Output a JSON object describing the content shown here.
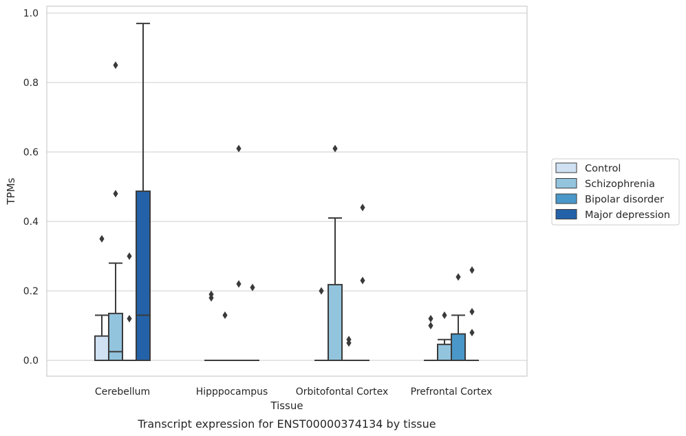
{
  "chart_data": {
    "type": "box",
    "xlabel": "Tissue",
    "ylabel": "TPMs",
    "caption": "Transcript expression for ENST00000374134 by tissue",
    "ylim": [
      -0.047,
      1.02
    ],
    "yticks": [
      0.0,
      0.2,
      0.4,
      0.6,
      0.8,
      1.0
    ],
    "ytick_labels": [
      "0.0",
      "0.2",
      "0.4",
      "0.6",
      "0.8",
      "1.0"
    ],
    "grid": "horizontal",
    "legend_position": "right",
    "categories": [
      "Cerebellum",
      "Hipppocampus",
      "Orbitofontal Cortex",
      "Prefrontal Cortex"
    ],
    "series": [
      {
        "name": "Control",
        "color": "#cfe1f2",
        "boxes": [
          {
            "q1": 0.0,
            "median": 0.0,
            "q3": 0.07,
            "whisker_low": 0.0,
            "whisker_high": 0.13,
            "outliers": [
              0.35
            ]
          },
          {
            "q1": 0.0,
            "median": 0.0,
            "q3": 0.0,
            "whisker_low": 0.0,
            "whisker_high": 0.0,
            "outliers": [
              0.19,
              0.18
            ]
          },
          {
            "q1": 0.0,
            "median": 0.0,
            "q3": 0.0,
            "whisker_low": 0.0,
            "whisker_high": 0.0,
            "outliers": [
              0.2
            ]
          },
          {
            "q1": 0.0,
            "median": 0.0,
            "q3": 0.0,
            "whisker_low": 0.0,
            "whisker_high": 0.0,
            "outliers": [
              0.12,
              0.1
            ]
          }
        ]
      },
      {
        "name": "Schizophrenia",
        "color": "#93c4de",
        "boxes": [
          {
            "q1": 0.0,
            "median": 0.025,
            "q3": 0.135,
            "whisker_low": 0.0,
            "whisker_high": 0.28,
            "outliers": [
              0.85,
              0.48
            ]
          },
          {
            "q1": 0.0,
            "median": 0.0,
            "q3": 0.0,
            "whisker_low": 0.0,
            "whisker_high": 0.0,
            "outliers": [
              0.13
            ]
          },
          {
            "q1": 0.0,
            "median": 0.0,
            "q3": 0.218,
            "whisker_low": 0.0,
            "whisker_high": 0.41,
            "outliers": [
              0.61
            ]
          },
          {
            "q1": 0.0,
            "median": 0.0,
            "q3": 0.046,
            "whisker_low": 0.0,
            "whisker_high": 0.06,
            "outliers": [
              0.13
            ]
          }
        ]
      },
      {
        "name": "Bipolar disorder",
        "color": "#4a98c9",
        "boxes": [
          {
            "q1": 0.0,
            "median": 0.0,
            "q3": 0.0,
            "whisker_low": 0.0,
            "whisker_high": 0.0,
            "outliers": [
              0.3,
              0.12
            ]
          },
          {
            "q1": 0.0,
            "median": 0.0,
            "q3": 0.0,
            "whisker_low": 0.0,
            "whisker_high": 0.0,
            "outliers": [
              0.61,
              0.22
            ]
          },
          {
            "q1": 0.0,
            "median": 0.0,
            "q3": 0.0,
            "whisker_low": 0.0,
            "whisker_high": 0.0,
            "outliers": [
              0.06,
              0.05
            ]
          },
          {
            "q1": 0.0,
            "median": 0.0,
            "q3": 0.076,
            "whisker_low": 0.0,
            "whisker_high": 0.13,
            "outliers": [
              0.24
            ]
          }
        ]
      },
      {
        "name": "Major depression",
        "color": "#2362a8",
        "boxes": [
          {
            "q1": 0.0,
            "median": 0.13,
            "q3": 0.487,
            "whisker_low": 0.0,
            "whisker_high": 0.97,
            "outliers": []
          },
          {
            "q1": 0.0,
            "median": 0.0,
            "q3": 0.0,
            "whisker_low": 0.0,
            "whisker_high": 0.0,
            "outliers": [
              0.21
            ]
          },
          {
            "q1": 0.0,
            "median": 0.0,
            "q3": 0.0,
            "whisker_low": 0.0,
            "whisker_high": 0.0,
            "outliers": [
              0.44,
              0.23
            ]
          },
          {
            "q1": 0.0,
            "median": 0.0,
            "q3": 0.0,
            "whisker_low": 0.0,
            "whisker_high": 0.0,
            "outliers": [
              0.26,
              0.14,
              0.08
            ]
          }
        ]
      }
    ]
  }
}
